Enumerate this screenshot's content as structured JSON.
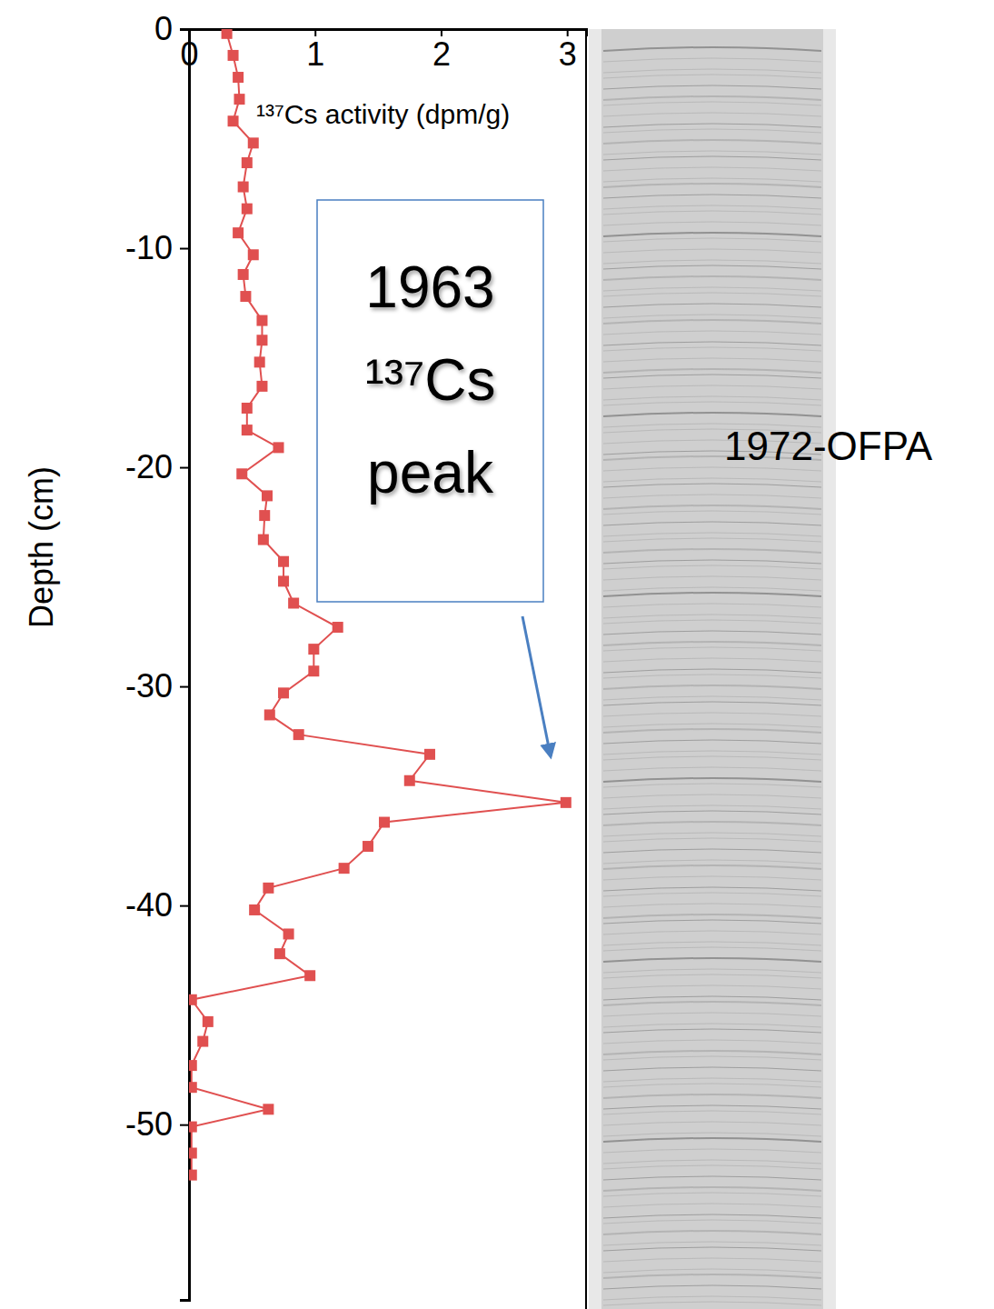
{
  "chart_data": {
    "type": "line",
    "x_label": "¹³⁷Cs activity (dpm/g)",
    "y_label": "Depth (cm)",
    "color": "#e05050",
    "marker": "square",
    "xlim": [
      0,
      3.15
    ],
    "xticks": [
      0,
      1,
      2,
      3
    ],
    "ylim": [
      -58,
      0
    ],
    "yticks": [
      0,
      -10,
      -20,
      -30,
      -40,
      -50
    ],
    "x": [
      0.3,
      0.35,
      0.39,
      0.4,
      0.35,
      0.51,
      0.46,
      0.43,
      0.46,
      0.39,
      0.51,
      0.43,
      0.45,
      0.58,
      0.58,
      0.56,
      0.58,
      0.46,
      0.46,
      0.71,
      0.42,
      0.62,
      0.6,
      0.59,
      0.75,
      0.75,
      0.83,
      1.18,
      0.99,
      0.99,
      0.75,
      0.64,
      0.87,
      1.91,
      1.75,
      2.99,
      1.55,
      1.42,
      1.23,
      0.63,
      0.52,
      0.79,
      0.72,
      0.96,
      0.02,
      0.15,
      0.11,
      0.02,
      0.02,
      0.63,
      0.02,
      0.02,
      0.02
    ],
    "values": [
      -0.2,
      -1.2,
      -2.2,
      -3.2,
      -4.2,
      -5.2,
      -6.1,
      -7.2,
      -8.2,
      -9.3,
      -10.3,
      -11.2,
      -12.2,
      -13.3,
      -14.2,
      -15.2,
      -16.3,
      -17.3,
      -18.3,
      -19.1,
      -20.3,
      -21.3,
      -22.2,
      -23.3,
      -24.3,
      -25.2,
      -26.2,
      -27.3,
      -28.3,
      -29.3,
      -30.3,
      -31.3,
      -32.2,
      -33.1,
      -34.3,
      -35.3,
      -36.2,
      -37.3,
      -38.3,
      -39.2,
      -40.2,
      -41.3,
      -42.2,
      -43.2,
      -44.3,
      -45.3,
      -46.2,
      -47.3,
      -48.3,
      -49.3,
      -50.1,
      -51.3,
      -52.3
    ],
    "annotations": [
      {
        "text": "1963 ¹³⁷Cs peak"
      },
      {
        "text": "1972-OFPA"
      }
    ]
  }
}
